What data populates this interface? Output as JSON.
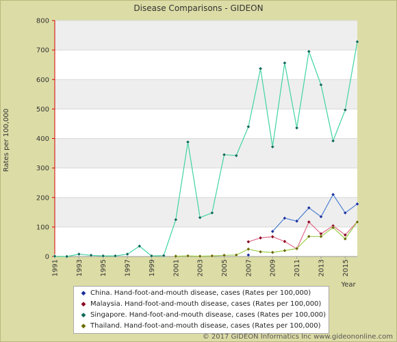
{
  "header": {
    "title": "Disease Comparisons - GIDEON"
  },
  "footer": {
    "copyright": "© 2017 GIDEON Informatics Inc www.gideononline.com"
  },
  "chart_data": {
    "type": "line",
    "title": "Disease Comparisons - GIDEON",
    "xlabel": "Year",
    "ylabel": "Rates per 100,000",
    "xlim": [
      1991,
      2016
    ],
    "ylim": [
      0,
      800
    ],
    "y_ticks": [
      0,
      100,
      200,
      300,
      400,
      500,
      600,
      700,
      800
    ],
    "x_tick_labels": [
      "1991",
      "1993",
      "1995",
      "1997",
      "1999",
      "2001",
      "2003",
      "2005",
      "2007",
      "2009",
      "2011",
      "2013",
      "2015"
    ],
    "x_tick_values": [
      1991,
      1993,
      1995,
      1997,
      1999,
      2001,
      2003,
      2005,
      2007,
      2009,
      2011,
      2013,
      2015
    ],
    "grid": true,
    "legend_position": "bottom",
    "series": [
      {
        "name": "China. Hand-foot-and-mouth disease, cases (Rates per 100,000)",
        "color": "#4a7fd4",
        "marker_color": "#1a2f9c",
        "x": [
          2007,
          2008,
          2009,
          2010,
          2011,
          2012,
          2013,
          2014,
          2015,
          2016
        ],
        "values": [
          5,
          null,
          85,
          130,
          120,
          165,
          135,
          210,
          148,
          178
        ]
      },
      {
        "name": "Malaysia. Hand-foot-and-mouth disease, cases (Rates per 100,000)",
        "color": "#e06a8a",
        "marker_color": "#8b0020",
        "x": [
          2007,
          2008,
          2009,
          2010,
          2011,
          2012,
          2013,
          2014,
          2015,
          2016
        ],
        "values": [
          50,
          63,
          67,
          51,
          26,
          117,
          77,
          104,
          73,
          118
        ]
      },
      {
        "name": "Singapore. Hand-foot-and-mouth disease, cases (Rates per 100,000)",
        "color": "#3fd4a0",
        "marker_color": "#0f6a5a",
        "x": [
          1991,
          1992,
          1993,
          1994,
          1995,
          1996,
          1997,
          1998,
          1999,
          2000,
          2001,
          2002,
          2003,
          2004,
          2005,
          2006,
          2007,
          2008,
          2009,
          2010,
          2011,
          2012,
          2013,
          2014,
          2015,
          2016
        ],
        "values": [
          1,
          0,
          8,
          4,
          2,
          2,
          8,
          35,
          2,
          3,
          125,
          388,
          132,
          148,
          345,
          342,
          440,
          637,
          372,
          656,
          436,
          695,
          582,
          392,
          497,
          728
        ]
      },
      {
        "name": "Thailand. Hand-foot-and-mouth disease, cases (Rates per 100,000)",
        "color": "#9bcf45",
        "marker_color": "#6b6b00",
        "x": [
          2001,
          2002,
          2003,
          2004,
          2005,
          2006,
          2007,
          2008,
          2009,
          2010,
          2011,
          2012,
          2013,
          2014,
          2015,
          2016
        ],
        "values": [
          1,
          2,
          1,
          2,
          4,
          5,
          25,
          16,
          14,
          20,
          27,
          68,
          68,
          98,
          60,
          117
        ]
      }
    ]
  }
}
